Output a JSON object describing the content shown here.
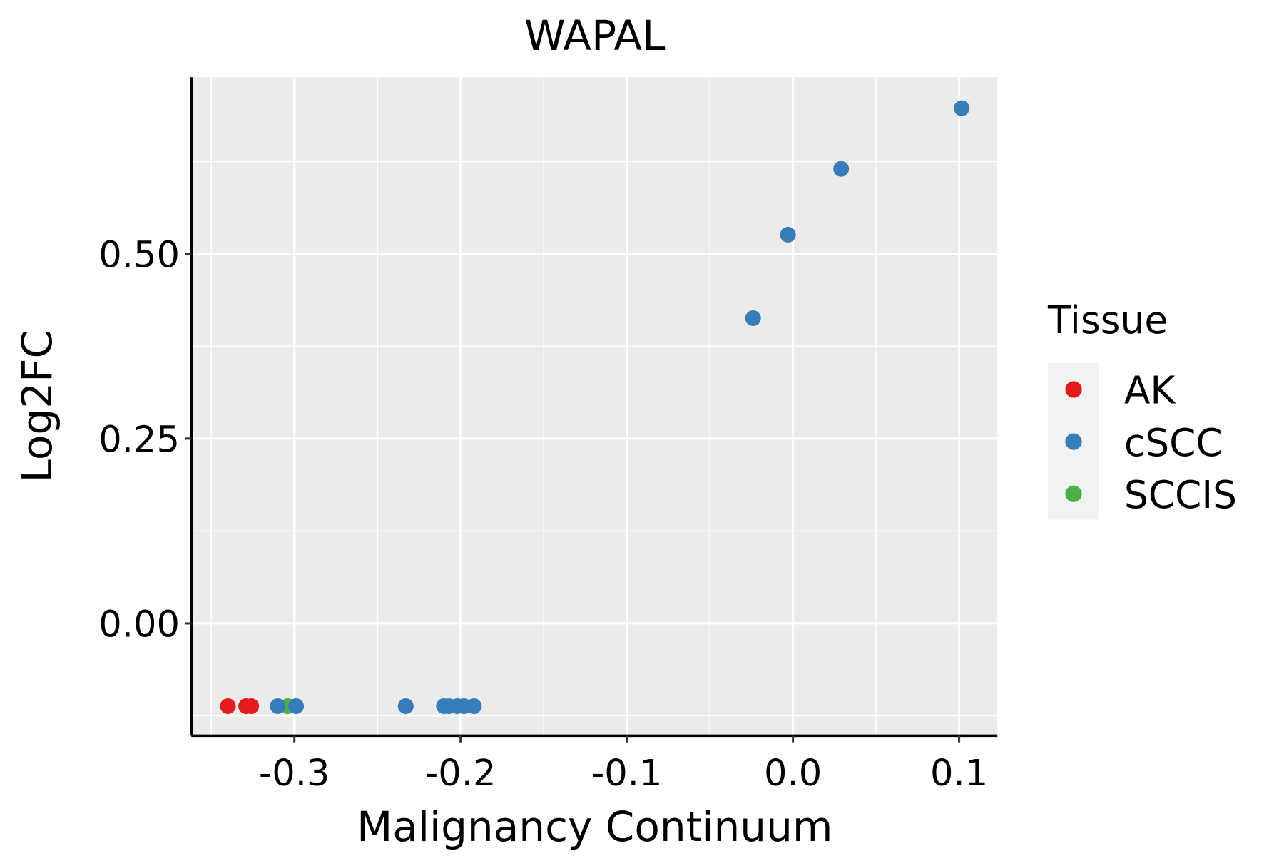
{
  "chart_data": {
    "type": "scatter",
    "title": "WAPAL",
    "xlabel": "Malignancy Continuum",
    "ylabel": "Log2FC",
    "xlim": [
      -0.362,
      0.123
    ],
    "ylim": [
      -0.152,
      0.739
    ],
    "x_ticks": [
      -0.3,
      -0.2,
      -0.1,
      0.0,
      0.1
    ],
    "x_tick_labels": [
      "-0.3",
      "-0.2",
      "-0.1",
      "0.0",
      "0.1"
    ],
    "y_ticks": [
      0,
      0.25,
      0.5
    ],
    "y_tick_labels": [
      "0.00",
      "0.25",
      "0.50"
    ],
    "grid": true,
    "legend": {
      "title": "Tissue",
      "placement": "right",
      "entries": [
        {
          "name": "AK",
          "color": "#E41A1C"
        },
        {
          "name": "cSCC",
          "color": "#377EB8"
        },
        {
          "name": "SCCIS",
          "color": "#4DAF4A"
        }
      ]
    },
    "series": [
      {
        "name": "AK",
        "color": "#E41A1C",
        "points": [
          [
            -0.34,
            -0.112
          ],
          [
            -0.329,
            -0.112
          ],
          [
            -0.326,
            -0.112
          ]
        ]
      },
      {
        "name": "SCCIS",
        "color": "#4DAF4A",
        "points": [
          [
            -0.304,
            -0.112
          ]
        ]
      },
      {
        "name": "cSCC",
        "color": "#377EB8",
        "points": [
          [
            -0.31,
            -0.112
          ],
          [
            -0.299,
            -0.112
          ],
          [
            -0.233,
            -0.112
          ],
          [
            -0.21,
            -0.112
          ],
          [
            -0.207,
            -0.112
          ],
          [
            -0.202,
            -0.112
          ],
          [
            -0.198,
            -0.112
          ],
          [
            -0.192,
            -0.112
          ],
          [
            -0.024,
            0.413
          ],
          [
            -0.003,
            0.526
          ],
          [
            0.029,
            0.615
          ],
          [
            0.1015,
            0.697
          ]
        ]
      }
    ]
  }
}
